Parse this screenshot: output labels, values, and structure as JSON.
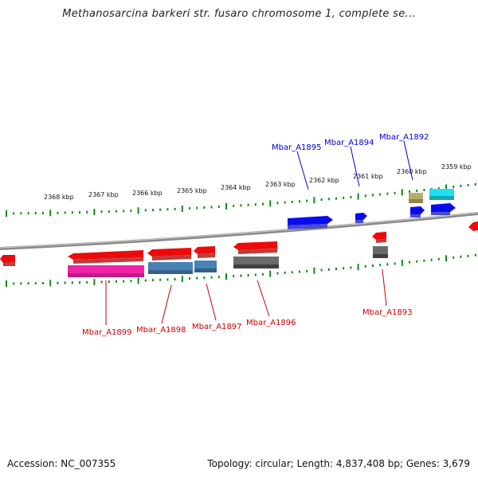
{
  "title": "Methanosarcina barkeri str. fusaro chromosome 1, complete se...",
  "footer": {
    "accession": "Accession: NC_007355",
    "summary": "Topology: circular; Length: 4,837,408 bp; Genes: 3,679"
  },
  "colors": {
    "forward_label": "#0000cc",
    "reverse_label": "#cc0000",
    "tick": "#118811",
    "backbone": "#8a8a8a"
  },
  "scale_ticks": [
    "2368 kbp",
    "2367 kbp",
    "2366 kbp",
    "2365 kbp",
    "2364 kbp",
    "2363 kbp",
    "2362 kbp",
    "2361 kbp",
    "2360 kbp",
    "2359 kbp"
  ],
  "gene_labels": {
    "forward": [
      "Mbar_A1895",
      "Mbar_A1894",
      "Mbar_A1892"
    ],
    "reverse": [
      "Mbar_A1899",
      "Mbar_A1898",
      "Mbar_A1897",
      "Mbar_A1896",
      "Mbar_A1893"
    ]
  }
}
